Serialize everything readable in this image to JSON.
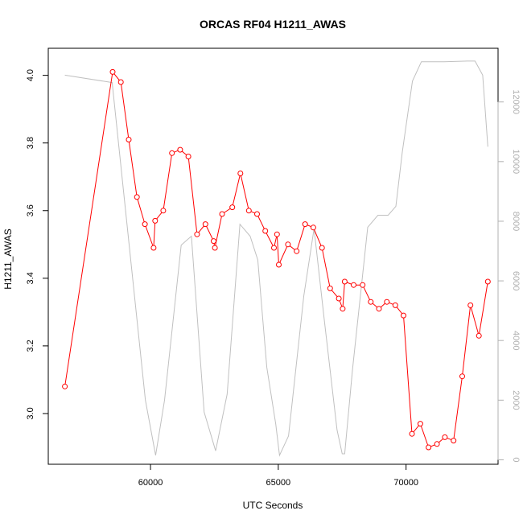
{
  "chart_data": {
    "type": "line",
    "title": "ORCAS RF04 H1211_AWAS",
    "xlabel": "UTC Seconds",
    "ylabel": "H1211_AWAS",
    "xlim": [
      56000,
      73600
    ],
    "ylim": [
      2.85,
      4.08
    ],
    "y2lim": [
      -150,
      13800
    ],
    "x_ticks": [
      60000,
      65000,
      70000
    ],
    "y_ticks": [
      3.0,
      3.2,
      3.4,
      3.6,
      3.8,
      4.0
    ],
    "y_tick_labels": [
      "3.0",
      "3.2",
      "3.4",
      "3.6",
      "3.8",
      "4.0"
    ],
    "y2_ticks": [
      0,
      2000,
      4000,
      6000,
      8000,
      10000,
      12000
    ],
    "grid": false,
    "series": [
      {
        "axis": "left",
        "color": "#ff0000",
        "marker": "open-circle",
        "x": [
          56650,
          58520,
          58840,
          59150,
          59470,
          59780,
          60120,
          60180,
          60500,
          60840,
          61160,
          61480,
          61820,
          62150,
          62470,
          62520,
          62800,
          63200,
          63520,
          63850,
          64170,
          64490,
          64830,
          64950,
          65020,
          65380,
          65720,
          66050,
          66370,
          66710,
          67030,
          67370,
          67520,
          67600,
          67950,
          68300,
          68620,
          68940,
          69250,
          69580,
          69900,
          70230,
          70560,
          70880,
          71210,
          71520,
          71860,
          72200,
          72520,
          72850,
          73200
        ],
        "y": [
          3.08,
          4.01,
          3.98,
          3.81,
          3.64,
          3.56,
          3.49,
          3.57,
          3.6,
          3.77,
          3.78,
          3.76,
          3.53,
          3.56,
          3.51,
          3.49,
          3.59,
          3.61,
          3.71,
          3.6,
          3.59,
          3.54,
          3.49,
          3.53,
          3.44,
          3.5,
          3.48,
          3.56,
          3.55,
          3.49,
          3.37,
          3.34,
          3.31,
          3.39,
          3.38,
          3.38,
          3.33,
          3.31,
          3.33,
          3.32,
          3.29,
          2.94,
          2.97,
          2.9,
          2.91,
          2.93,
          2.92,
          3.11,
          3.32,
          3.23,
          3.39
        ]
      },
      {
        "axis": "right",
        "color": "#c0c0c0",
        "marker": "none",
        "x": [
          56650,
          58500,
          59800,
          60200,
          60550,
          61200,
          61600,
          62100,
          62550,
          63000,
          63500,
          63900,
          64200,
          64550,
          64900,
          65050,
          65400,
          66000,
          66400,
          66800,
          67300,
          67500,
          67600,
          67900,
          68500,
          68900,
          69300,
          69600,
          69850,
          70250,
          70600,
          71500,
          72400,
          72700,
          73000,
          73200
        ],
        "y": [
          12900,
          12650,
          2000,
          150,
          2000,
          7200,
          7500,
          1600,
          300,
          2200,
          7900,
          7500,
          6700,
          3100,
          1200,
          150,
          800,
          5500,
          7750,
          4700,
          1000,
          200,
          200,
          3000,
          7800,
          8200,
          8200,
          8500,
          10300,
          12700,
          13350,
          13350,
          13370,
          13370,
          12900,
          10500
        ]
      }
    ]
  }
}
